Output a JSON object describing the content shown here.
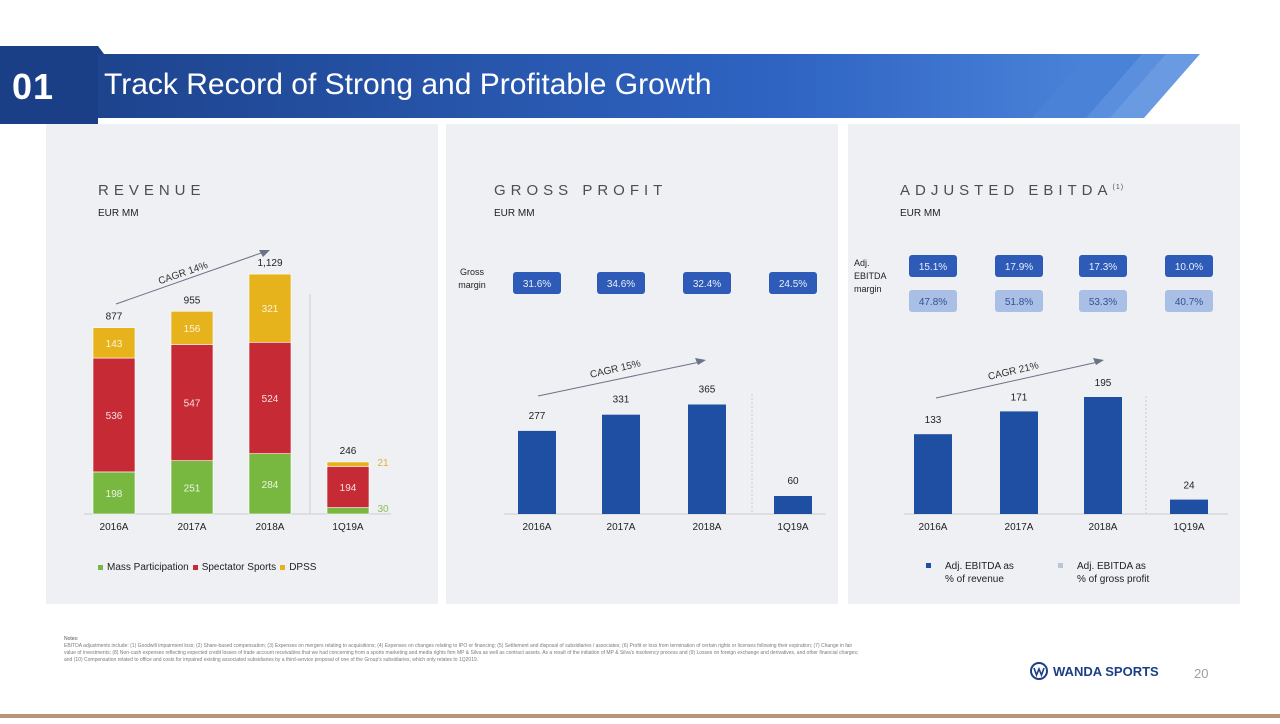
{
  "header": {
    "section_number": "01",
    "title": "Track Record of Strong and Profitable Growth"
  },
  "colors": {
    "navy": "#1b3f86",
    "bar_blue": "#1f4fa3",
    "mass_participation": "#78b840",
    "spectator_sports": "#c62b35",
    "dpss": "#e7b31c",
    "margin_pill_dark": "#2e5bb8",
    "margin_pill_light": "#a9bfe6",
    "panel_bg": "#eef0f3"
  },
  "revenue": {
    "title": "REVENUE",
    "unit": "EUR MM",
    "cagr": "CAGR 14%",
    "legend": [
      "Mass Participation",
      "Spectator Sports",
      "DPSS"
    ],
    "chart_data": {
      "type": "bar",
      "stacked": true,
      "categories": [
        "2016A",
        "2017A",
        "2018A",
        "1Q19A"
      ],
      "series": [
        {
          "name": "Mass Participation",
          "values": [
            198,
            251,
            284,
            30
          ]
        },
        {
          "name": "Spectator Sports",
          "values": [
            536,
            547,
            524,
            194
          ]
        },
        {
          "name": "DPSS",
          "values": [
            143,
            156,
            321,
            21
          ]
        }
      ],
      "totals": [
        "877",
        "955",
        "1,129",
        "246"
      ],
      "segment_labels": [
        [
          "198",
          "536",
          "143"
        ],
        [
          "251",
          "547",
          "156"
        ],
        [
          "284",
          "524",
          "321"
        ],
        [
          "30",
          "194",
          "21"
        ]
      ]
    }
  },
  "gross_profit": {
    "title": "GROSS PROFIT",
    "unit": "EUR MM",
    "margin_label": [
      "Gross",
      "margin"
    ],
    "margins": [
      "31.6%",
      "34.6%",
      "32.4%",
      "24.5%"
    ],
    "cagr": "CAGR 15%",
    "chart_data": {
      "type": "bar",
      "categories": [
        "2016A",
        "2017A",
        "2018A",
        "1Q19A"
      ],
      "values": [
        277,
        331,
        365,
        60
      ],
      "value_labels": [
        "277",
        "331",
        "365",
        "60"
      ]
    }
  },
  "ebitda": {
    "title": "ADJUSTED EBITDA",
    "footnote_mark": "(1)",
    "unit": "EUR MM",
    "margin_label": [
      "Adj.",
      "EBITDA",
      "margin"
    ],
    "margins_revenue": [
      "15.1%",
      "17.9%",
      "17.3%",
      "10.0%"
    ],
    "margins_gross_profit": [
      "47.8%",
      "51.8%",
      "53.3%",
      "40.7%"
    ],
    "cagr": "CAGR 21%",
    "legend": [
      [
        "Adj. EBITDA as",
        "% of revenue"
      ],
      [
        "Adj. EBITDA as",
        "% of gross profit"
      ]
    ],
    "chart_data": {
      "type": "bar",
      "categories": [
        "2016A",
        "2017A",
        "2018A",
        "1Q19A"
      ],
      "values": [
        133,
        171,
        195,
        24
      ],
      "value_labels": [
        "133",
        "171",
        "195",
        "24"
      ]
    }
  },
  "notes": {
    "heading": "Notes:",
    "text": "EBITDA adjustments include: (1) Goodwill impairment loss; (2) Share-based compensation; (3) Expenses on mergers relating to acquisitions; (4) Expenses on changes relating to IPO or financing; (5) Settlement and disposal of subsidiaries / associates; (6) Profit or loss from termination of certain rights or licenses following their expiration; (7) Change in fair value of investments; (8) Non-cash expenses reflecting expected credit losses of trade account receivables that we had concerning from a sports marketing and media rights firm MP & Silva as well as contract assets. As a result of the initiation of MP & Silva's insolvency process and (9) Losses on foreign exchange and derivatives, and other financial charges; and (10) Compensation related to office and costs for impaired existing associated subsidiaries by a third-service proposal of one of the Group's subsidiaries, which only relates to 1Q2019."
  },
  "footer": {
    "logo_text": "WANDA SPORTS",
    "logo_icon": "wanda-globe-icon",
    "page_number": "20"
  }
}
